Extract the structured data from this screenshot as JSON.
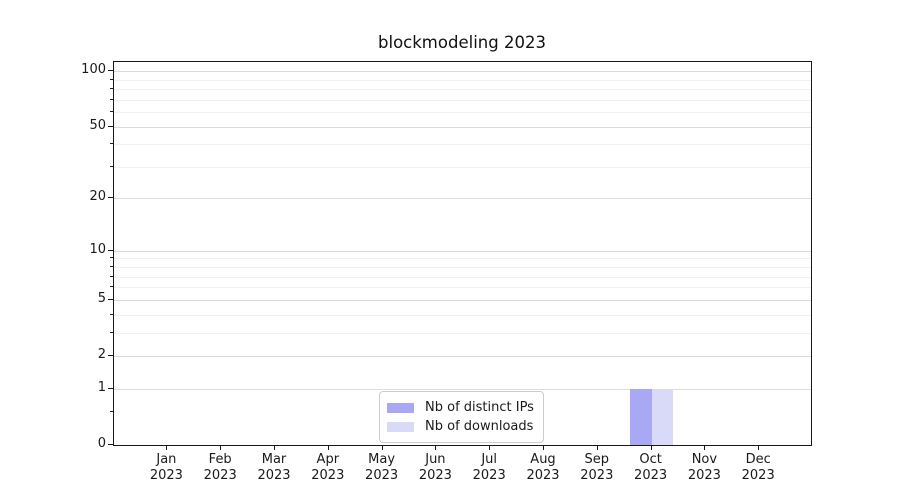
{
  "chart_data": {
    "type": "bar",
    "title": "blockmodeling 2023",
    "xlabel": "",
    "ylabel": "",
    "x_categories": [
      {
        "month": "Jan",
        "year": "2023"
      },
      {
        "month": "Feb",
        "year": "2023"
      },
      {
        "month": "Mar",
        "year": "2023"
      },
      {
        "month": "Apr",
        "year": "2023"
      },
      {
        "month": "May",
        "year": "2023"
      },
      {
        "month": "Jun",
        "year": "2023"
      },
      {
        "month": "Jul",
        "year": "2023"
      },
      {
        "month": "Aug",
        "year": "2023"
      },
      {
        "month": "Sep",
        "year": "2023"
      },
      {
        "month": "Oct",
        "year": "2023"
      },
      {
        "month": "Nov",
        "year": "2023"
      },
      {
        "month": "Dec",
        "year": "2023"
      }
    ],
    "series": [
      {
        "name": "Nb of distinct IPs",
        "color": "#a8a8f5",
        "values": [
          0,
          0,
          0,
          0,
          0,
          0,
          0,
          0,
          0,
          1,
          0,
          0
        ]
      },
      {
        "name": "Nb of downloads",
        "color": "#d9d9f8",
        "values": [
          0,
          0,
          0,
          0,
          0,
          0,
          0,
          0,
          0,
          1,
          0,
          0
        ]
      }
    ],
    "y_axis": {
      "scale": "log1p",
      "major_ticks": [
        0,
        1,
        2,
        5,
        10,
        20,
        50,
        100
      ],
      "minor_ticks": [
        0.5,
        3,
        4,
        6,
        7,
        8,
        9,
        30,
        40,
        60,
        70,
        80,
        90
      ],
      "ylim": [
        0,
        113
      ]
    },
    "grid": "horizontal major and minor gridlines",
    "legend_position": "lower center inside plot"
  }
}
